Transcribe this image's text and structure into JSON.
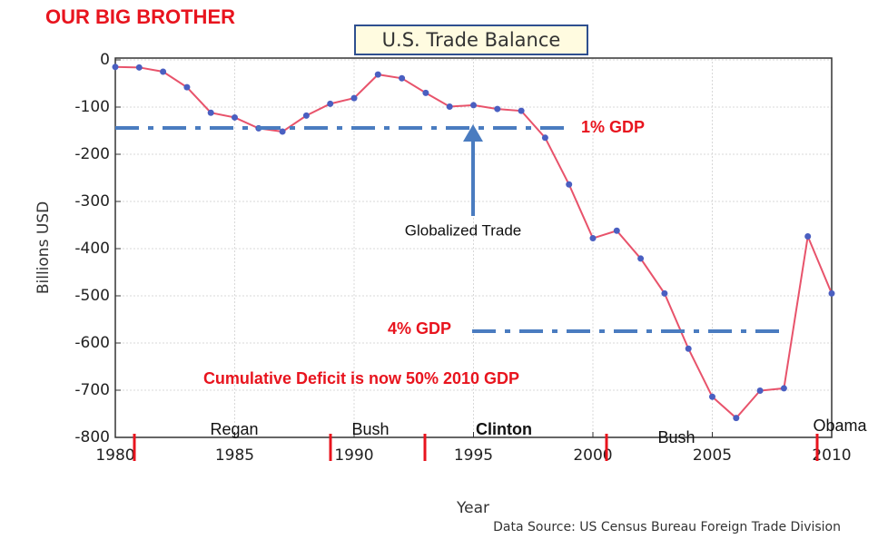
{
  "chart_data": {
    "type": "line",
    "heading": "OUR BIG BROTHER",
    "title": "U.S. Trade Balance",
    "y_label": "Billions USD",
    "x_label": "Year",
    "source": "Data Source: US Census Bureau Foreign Trade Division",
    "annotations": {
      "gdp1": "1% GDP",
      "gdp4": "4% GDP",
      "arrow": "Globalized Trade",
      "note": "Cumulative Deficit is now 50% 2010 GDP"
    },
    "presidents": [
      "Regan",
      "Bush",
      "Clinton",
      "Bush",
      "Obama"
    ],
    "x": [
      1980,
      1981,
      1982,
      1983,
      1984,
      1985,
      1986,
      1987,
      1988,
      1989,
      1990,
      1991,
      1992,
      1993,
      1994,
      1995,
      1996,
      1997,
      1998,
      1999,
      2000,
      2001,
      2002,
      2003,
      2004,
      2005,
      2006,
      2007,
      2008,
      2009,
      2010
    ],
    "series": [
      {
        "name": "Trade Balance",
        "color": "#e8536b",
        "marker_color": "#4a5fc1",
        "values": [
          -15,
          -16,
          -25,
          -58,
          -112,
          -122,
          -145,
          -152,
          -118,
          -93,
          -81,
          -31,
          -39,
          -70,
          -99,
          -96,
          -104,
          -108,
          -165,
          -264,
          -378,
          -362,
          -421,
          -495,
          -612,
          -714,
          -759,
          -701,
          -696,
          -374,
          -495
        ]
      }
    ],
    "xlim": [
      1980,
      2010
    ],
    "xticks": [
      1980,
      1985,
      1990,
      1995,
      2000,
      2005,
      2010
    ],
    "ylim": [
      -800,
      0
    ],
    "yticks": [
      0,
      -100,
      -200,
      -300,
      -400,
      -500,
      -600,
      -700,
      -800
    ],
    "grid": true
  }
}
